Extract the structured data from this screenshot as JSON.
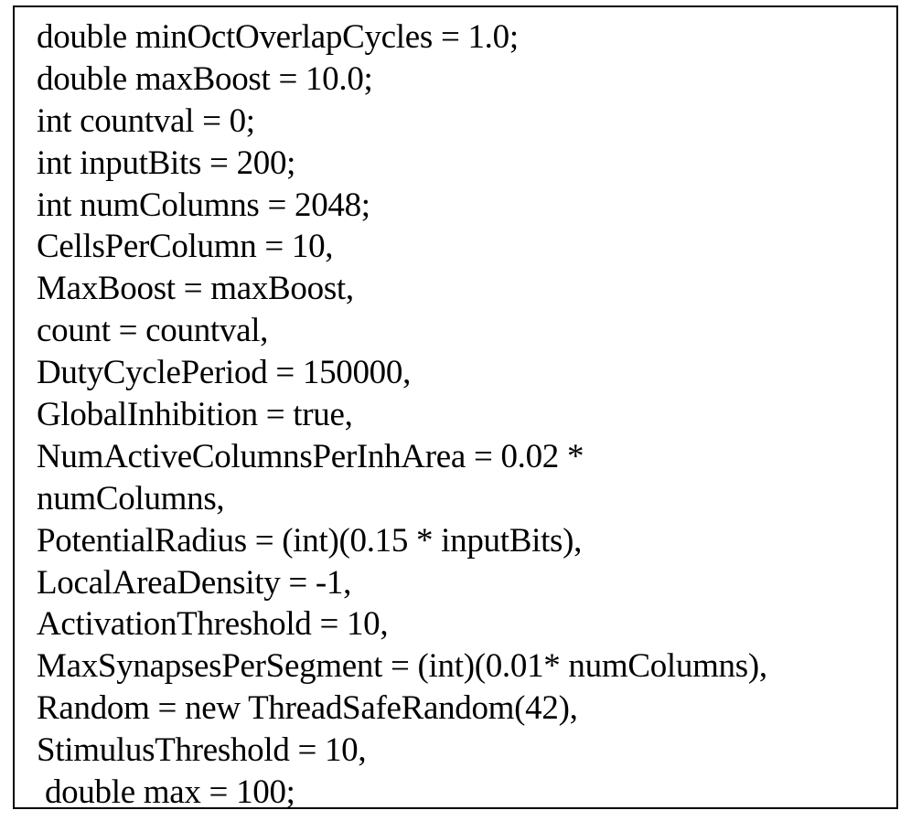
{
  "document": {
    "lines": [
      "double minOctOverlapCycles = 1.0;",
      "double maxBoost = 10.0;",
      "int countval = 0;",
      "int inputBits = 200;",
      "int numColumns = 2048;",
      "CellsPerColumn = 10,",
      "MaxBoost = maxBoost,",
      "count = countval,",
      "DutyCyclePeriod = 150000,",
      "GlobalInhibition = true,",
      "NumActiveColumnsPerInhArea = 0.02 *",
      "numColumns,",
      "PotentialRadius = (int)(0.15 * inputBits),",
      "LocalAreaDensity = -1,",
      "ActivationThreshold = 10,",
      "MaxSynapsesPerSegment = (int)(0.01* numColumns),",
      "Random = new ThreadSafeRandom(42),",
      "StimulusThreshold = 10,",
      " double max = 100;"
    ]
  }
}
